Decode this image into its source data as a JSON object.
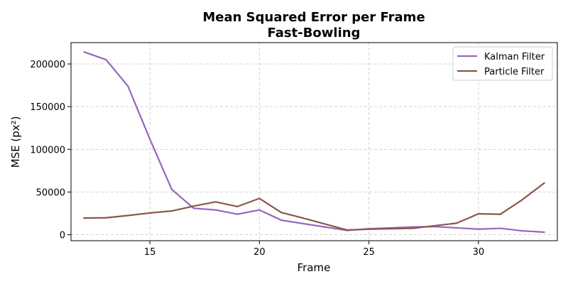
{
  "chart_data": {
    "type": "line",
    "title": "Mean Squared Error per Frame",
    "subtitle": "Fast-Bowling",
    "xlabel": "Frame",
    "ylabel": "MSE (px²)",
    "xlim": [
      11.4,
      33.6
    ],
    "ylim": [
      -7000,
      225000
    ],
    "xticks": [
      15,
      20,
      25,
      30
    ],
    "yticks": [
      0,
      50000,
      100000,
      150000,
      200000
    ],
    "grid": true,
    "legend_position": "top-right",
    "x": [
      12,
      13,
      14,
      15,
      16,
      17,
      18,
      19,
      20,
      21,
      22,
      23,
      24,
      25,
      26,
      27,
      28,
      29,
      30,
      31,
      32,
      33
    ],
    "series": [
      {
        "name": "Kalman Filter",
        "color": "#9467bd",
        "values": [
          214000,
          205000,
          174000,
          112000,
          53000,
          31000,
          29000,
          24000,
          29000,
          17000,
          13000,
          9000,
          5000,
          7000,
          8000,
          9000,
          9500,
          8000,
          6500,
          7500,
          4500,
          3000
        ]
      },
      {
        "name": "Particle Filter",
        "color": "#8c564b",
        "values": [
          19500,
          19800,
          22500,
          25500,
          27800,
          33500,
          38500,
          33000,
          42500,
          26000,
          19500,
          12500,
          5500,
          6500,
          7000,
          7500,
          10500,
          13500,
          24500,
          24000,
          41000,
          60500
        ]
      }
    ]
  }
}
